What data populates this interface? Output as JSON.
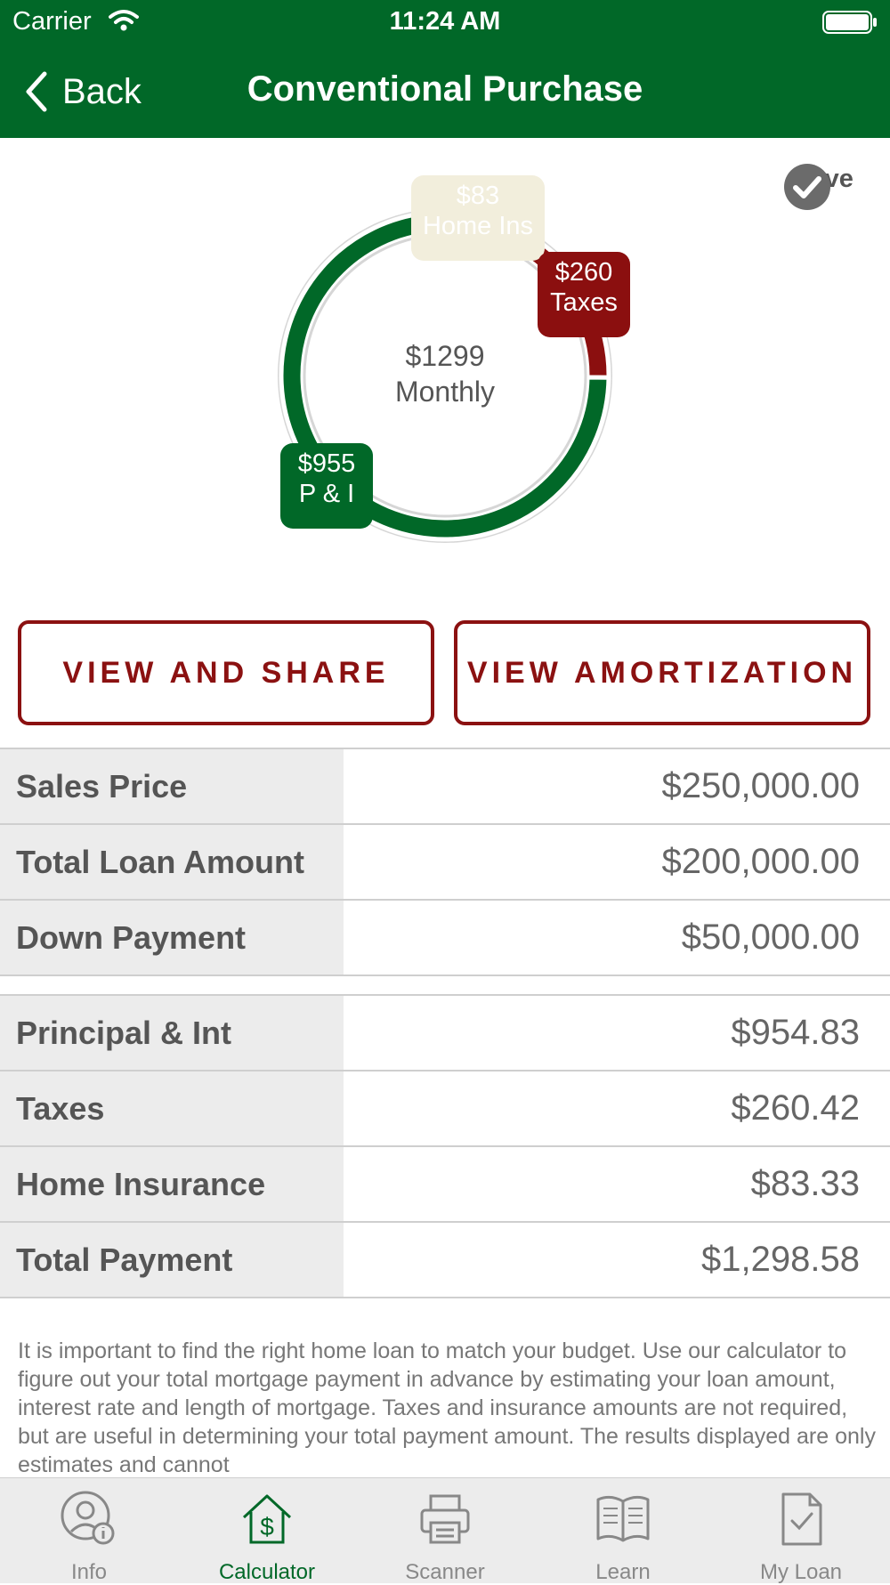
{
  "status_bar": {
    "carrier": "Carrier",
    "time": "11:24 AM"
  },
  "nav": {
    "back_label": "Back",
    "title": "Conventional Purchase"
  },
  "chart_data": {
    "type": "pie",
    "center_value": "$1299",
    "center_label": "Monthly",
    "slices": [
      {
        "label": "Home Ins",
        "display": "$83",
        "value": 83.33,
        "color": "#f2eedc"
      },
      {
        "label": "Taxes",
        "display": "$260",
        "value": 260.42,
        "color": "#8b0f0f"
      },
      {
        "label": "P & I",
        "display": "$955",
        "value": 954.83,
        "color": "#016828"
      }
    ]
  },
  "save_label": "Save",
  "buttons": {
    "share": "VIEW AND SHARE",
    "amortization": "VIEW AMORTIZATION"
  },
  "loan_rows": [
    {
      "label": "Sales Price",
      "value": "$250,000.00"
    },
    {
      "label": "Total Loan Amount",
      "value": "$200,000.00"
    },
    {
      "label": "Down Payment",
      "value": "$50,000.00"
    }
  ],
  "payment_rows": [
    {
      "label": "Principal & Int",
      "value": "$954.83"
    },
    {
      "label": "Taxes",
      "value": "$260.42"
    },
    {
      "label": "Home Insurance",
      "value": "$83.33"
    },
    {
      "label": "Total Payment",
      "value": "$1,298.58"
    }
  ],
  "description": "It is important to find the right home loan to match your budget. Use our calculator to figure out your total mortgage payment in advance by estimating your loan amount, interest rate and length of mortgage. Taxes and insurance amounts are not required, but are useful in determining your total payment amount.  The results displayed are only estimates and cannot",
  "tabs": [
    {
      "label": "Info",
      "icon": "person-info-icon"
    },
    {
      "label": "Calculator",
      "icon": "house-dollar-icon",
      "active": true
    },
    {
      "label": "Scanner",
      "icon": "printer-icon"
    },
    {
      "label": "Learn",
      "icon": "book-icon"
    },
    {
      "label": "My Loan",
      "icon": "document-check-icon"
    }
  ],
  "colors": {
    "brand_green": "#016828",
    "accent_red": "#8b1111"
  }
}
